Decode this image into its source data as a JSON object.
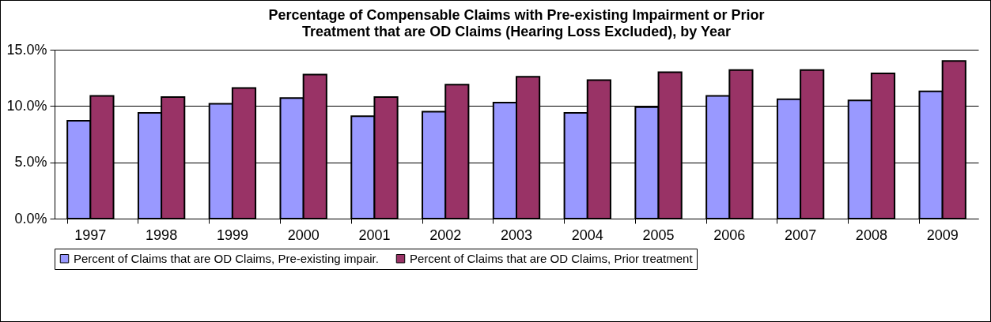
{
  "chart_data": {
    "type": "bar",
    "title": "Percentage of Compensable Claims with Pre-existing Impairment or Prior\nTreatment that are OD Claims (Hearing Loss Excluded), by Year",
    "categories": [
      "1997",
      "1998",
      "1999",
      "2000",
      "2001",
      "2002",
      "2003",
      "2004",
      "2005",
      "2006",
      "2007",
      "2008",
      "2009"
    ],
    "series": [
      {
        "name": "Percent of Claims that are OD Claims, Pre-existing impair.",
        "color": "#9999ff",
        "values": [
          8.7,
          9.4,
          10.2,
          10.7,
          9.1,
          9.5,
          10.3,
          9.4,
          9.9,
          10.9,
          10.6,
          10.5,
          11.3
        ]
      },
      {
        "name": "Percent of Claims that are OD Claims, Prior treatment",
        "color": "#993366",
        "values": [
          10.9,
          10.8,
          11.6,
          12.8,
          10.8,
          11.9,
          12.6,
          12.3,
          13.0,
          13.2,
          13.2,
          12.9,
          14.0
        ]
      }
    ],
    "ylim": [
      0,
      15
    ],
    "yticks": [
      {
        "value": 0,
        "label": "0.0%"
      },
      {
        "value": 5,
        "label": "5.0%"
      },
      {
        "value": 10,
        "label": "10.0%"
      },
      {
        "value": 15,
        "label": "15.0%"
      }
    ],
    "grid": "y",
    "legend": "bottom"
  }
}
